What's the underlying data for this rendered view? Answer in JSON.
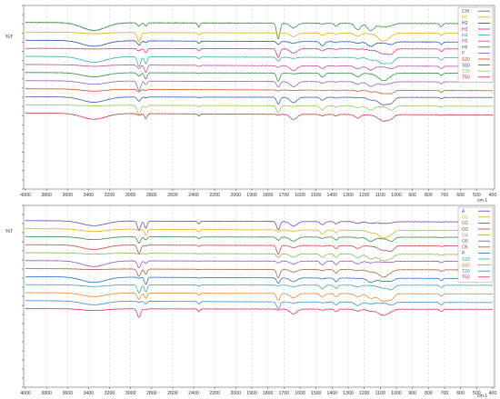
{
  "chart_data": [
    {
      "type": "line",
      "panel": "top",
      "ylabel": "%T",
      "xlabel_unit": "cm-1",
      "xlim": [
        4000,
        400
      ],
      "x_reversed": true,
      "x_ticks": [
        4000,
        3800,
        3600,
        3400,
        3200,
        3000,
        2800,
        2600,
        2400,
        2200,
        2000,
        1900,
        1800,
        1700,
        1600,
        1500,
        1400,
        1300,
        1200,
        1100,
        1000,
        900,
        800,
        700,
        600,
        500,
        400
      ],
      "legend_position": "top-right",
      "series": [
        {
          "name": "CHI",
          "color": "#2e7d32",
          "baseline": 0.06,
          "amp": 1.0
        },
        {
          "name": "H1",
          "color": "#e0a800",
          "baseline": 0.12,
          "amp": 0.55
        },
        {
          "name": "H2",
          "color": "#1f3fa8",
          "baseline": 0.17,
          "amp": 0.55
        },
        {
          "name": "H3",
          "color": "#e91e63",
          "baseline": 0.22,
          "amp": 0.55
        },
        {
          "name": "H4",
          "color": "#26a9a0",
          "baseline": 0.27,
          "amp": 0.55
        },
        {
          "name": "H5",
          "color": "#c63a9a",
          "baseline": 0.32,
          "amp": 0.55
        },
        {
          "name": "H6",
          "color": "#1b7f3c",
          "baseline": 0.37,
          "amp": 0.55
        },
        {
          "name": "P",
          "color": "#7e57c2",
          "baseline": 0.42,
          "amp": 0.55
        },
        {
          "name": "S20",
          "color": "#d84315",
          "baseline": 0.47,
          "amp": 0.55
        },
        {
          "name": "S50",
          "color": "#3949ab",
          "baseline": 0.52,
          "amp": 0.55
        },
        {
          "name": "T20",
          "color": "#8bc34a",
          "baseline": 0.57,
          "amp": 0.55
        },
        {
          "name": "T50",
          "color": "#c62828",
          "baseline": 0.62,
          "amp": 0.55
        }
      ]
    },
    {
      "type": "line",
      "panel": "bottom",
      "ylabel": "%T",
      "xlabel_unit": "cm-1",
      "xlim": [
        4000,
        400
      ],
      "x_reversed": true,
      "x_ticks": [
        4000,
        3800,
        3600,
        3400,
        3200,
        3000,
        2800,
        2600,
        2400,
        2200,
        2000,
        1900,
        1800,
        1700,
        1600,
        1500,
        1400,
        1300,
        1200,
        1100,
        1000,
        900,
        800,
        700,
        600,
        500,
        400
      ],
      "legend_position": "top-right",
      "series": [
        {
          "name": "A",
          "color": "#5e35b1",
          "baseline": 0.05,
          "amp": 0.55
        },
        {
          "name": "O1",
          "color": "#e0a800",
          "baseline": 0.1,
          "amp": 0.55
        },
        {
          "name": "O2",
          "color": "#2e7d32",
          "baseline": 0.15,
          "amp": 0.55
        },
        {
          "name": "O3",
          "color": "#c0392b",
          "baseline": 0.2,
          "amp": 0.55
        },
        {
          "name": "O4",
          "color": "#7cb342",
          "baseline": 0.25,
          "amp": 0.55
        },
        {
          "name": "O5",
          "color": "#8e44ad",
          "baseline": 0.3,
          "amp": 0.55
        },
        {
          "name": "O6",
          "color": "#a0522d",
          "baseline": 0.35,
          "amp": 0.55
        },
        {
          "name": "P",
          "color": "#1565c0",
          "baseline": 0.4,
          "amp": 0.55
        },
        {
          "name": "S20",
          "color": "#26a69a",
          "baseline": 0.45,
          "amp": 0.55
        },
        {
          "name": "S50",
          "color": "#e67e22",
          "baseline": 0.5,
          "amp": 0.55
        },
        {
          "name": "T20",
          "color": "#2e86c1",
          "baseline": 0.55,
          "amp": 0.55
        },
        {
          "name": "T50",
          "color": "#d81b60",
          "baseline": 0.6,
          "amp": 0.55
        }
      ]
    }
  ]
}
